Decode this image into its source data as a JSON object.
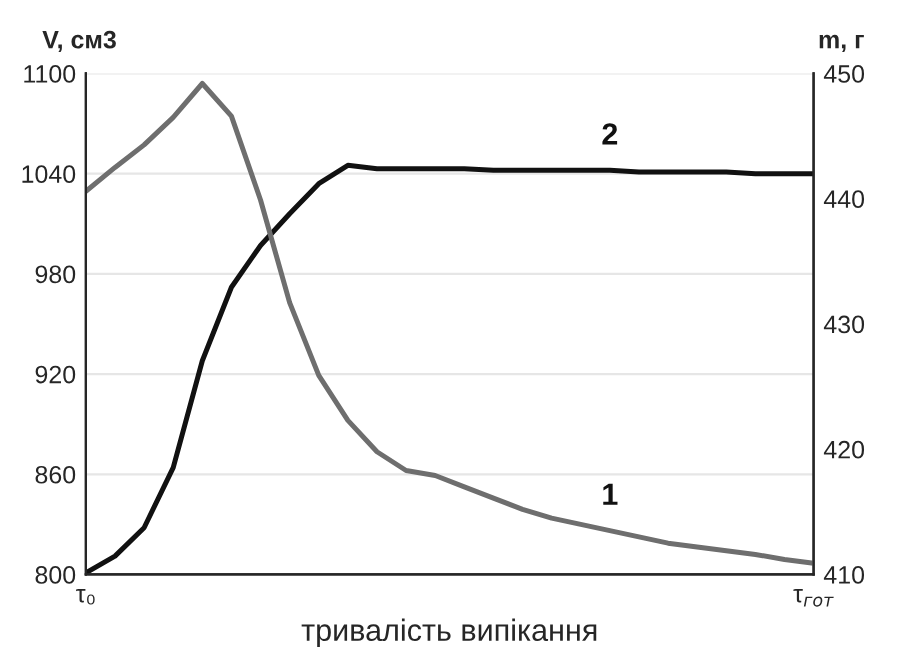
{
  "chart_data": {
    "type": "line",
    "xlabel": "тривалість випікання",
    "ylabel": "V, см3",
    "y2label": "m, г",
    "categories": [
      "τ₀",
      null,
      null,
      null,
      null,
      null,
      null,
      null,
      null,
      null,
      null,
      null,
      null,
      null,
      null,
      null,
      null,
      null,
      null,
      null,
      null,
      null,
      null,
      null,
      null,
      "τ$_{гот}$"
    ],
    "ylim": [
      800,
      1100
    ],
    "yticks": [
      800,
      860,
      920,
      980,
      1040,
      1100
    ],
    "y2lim": [
      410,
      450
    ],
    "y2ticks": [
      410,
      420,
      430,
      440,
      450
    ],
    "grid": true,
    "legend": false,
    "series": [
      {
        "name": "1",
        "color": "#6e6e6e",
        "axis": "y2",
        "values": [
          440.6,
          442.5,
          444.3,
          446.5,
          449.2,
          446.6,
          439.9,
          431.7,
          425.9,
          422.3,
          419.8,
          418.3,
          417.9,
          417.0,
          416.1,
          415.2,
          414.5,
          414.0,
          413.5,
          413.0,
          412.5,
          412.2,
          411.9,
          411.6,
          411.2,
          410.9
        ]
      },
      {
        "name": "2",
        "color": "#111111",
        "axis": "y",
        "values": [
          801,
          811,
          828,
          864,
          928,
          972,
          997,
          1016,
          1034,
          1045,
          1043,
          1043,
          1043,
          1043,
          1042,
          1042,
          1042,
          1042,
          1042,
          1041,
          1041,
          1041,
          1041,
          1040,
          1040,
          1040
        ]
      }
    ]
  }
}
